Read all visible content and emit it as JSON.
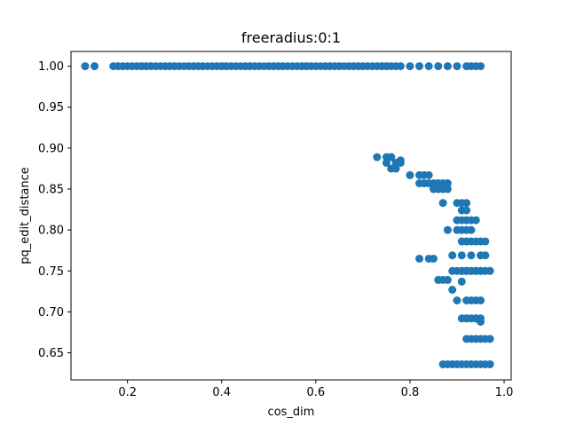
{
  "chart_data": {
    "type": "scatter",
    "title": "freeradius:0:1",
    "xlabel": "cos_dim",
    "ylabel": "pq_edit_distance",
    "xlim": [
      0.08,
      1.015
    ],
    "ylim": [
      0.617,
      1.018
    ],
    "xticks": [
      0.2,
      0.4,
      0.6,
      0.8,
      1.0
    ],
    "xtick_labels": [
      "0.2",
      "0.4",
      "0.6",
      "0.8",
      "1.0"
    ],
    "yticks": [
      0.65,
      0.7,
      0.75,
      0.8,
      0.85,
      0.9,
      0.95,
      1.0
    ],
    "ytick_labels": [
      "0.65",
      "0.70",
      "0.75",
      "0.80",
      "0.85",
      "0.90",
      "0.95",
      "1.00"
    ],
    "grid": false,
    "marker_color": "#1f77b4",
    "series": [
      {
        "x": [
          0.11,
          0.13,
          0.17,
          0.18,
          0.19,
          0.2,
          0.21,
          0.22,
          0.23,
          0.24,
          0.25,
          0.26,
          0.27,
          0.28,
          0.29,
          0.3,
          0.31,
          0.32,
          0.33,
          0.34,
          0.35,
          0.36,
          0.37,
          0.38,
          0.39,
          0.4,
          0.41,
          0.42,
          0.43,
          0.44,
          0.45,
          0.46,
          0.47,
          0.48,
          0.49,
          0.5,
          0.51,
          0.52,
          0.53,
          0.54,
          0.55,
          0.56,
          0.57,
          0.58,
          0.59,
          0.6,
          0.61,
          0.62,
          0.63,
          0.64,
          0.65,
          0.66,
          0.67,
          0.68,
          0.69,
          0.7,
          0.71,
          0.72,
          0.73,
          0.74,
          0.75,
          0.76,
          0.77,
          0.78,
          0.8,
          0.82,
          0.84,
          0.86,
          0.88,
          0.9,
          0.92,
          0.93,
          0.94,
          0.95,
          0.73,
          0.75,
          0.76,
          0.77,
          0.78,
          0.75,
          0.76,
          0.77,
          0.78,
          0.76,
          0.8,
          0.82,
          0.83,
          0.84,
          0.82,
          0.83,
          0.84,
          0.85,
          0.86,
          0.87,
          0.88,
          0.85,
          0.86,
          0.87,
          0.88,
          0.87,
          0.9,
          0.91,
          0.92,
          0.91,
          0.92,
          0.9,
          0.91,
          0.92,
          0.93,
          0.88,
          0.9,
          0.91,
          0.92,
          0.93,
          0.94,
          0.91,
          0.92,
          0.93,
          0.94,
          0.95,
          0.96,
          0.89,
          0.91,
          0.93,
          0.95,
          0.91,
          0.92,
          0.93,
          0.94,
          0.95,
          0.96,
          0.82,
          0.84,
          0.85,
          0.89,
          0.9,
          0.91,
          0.92,
          0.93,
          0.94,
          0.95,
          0.96,
          0.97,
          0.86,
          0.87,
          0.88,
          0.89,
          0.91,
          0.9,
          0.92,
          0.93,
          0.94,
          0.95,
          0.92,
          0.93,
          0.94,
          0.95,
          0.91,
          0.92,
          0.93,
          0.94,
          0.95,
          0.92,
          0.93,
          0.94,
          0.95,
          0.96,
          0.97,
          0.87,
          0.88,
          0.89,
          0.9,
          0.91,
          0.92,
          0.93,
          0.94,
          0.95,
          0.96,
          0.97
        ],
        "y": [
          1.0,
          1.0,
          1.0,
          1.0,
          1.0,
          1.0,
          1.0,
          1.0,
          1.0,
          1.0,
          1.0,
          1.0,
          1.0,
          1.0,
          1.0,
          1.0,
          1.0,
          1.0,
          1.0,
          1.0,
          1.0,
          1.0,
          1.0,
          1.0,
          1.0,
          1.0,
          1.0,
          1.0,
          1.0,
          1.0,
          1.0,
          1.0,
          1.0,
          1.0,
          1.0,
          1.0,
          1.0,
          1.0,
          1.0,
          1.0,
          1.0,
          1.0,
          1.0,
          1.0,
          1.0,
          1.0,
          1.0,
          1.0,
          1.0,
          1.0,
          1.0,
          1.0,
          1.0,
          1.0,
          1.0,
          1.0,
          1.0,
          1.0,
          1.0,
          1.0,
          1.0,
          1.0,
          1.0,
          1.0,
          1.0,
          1.0,
          1.0,
          1.0,
          1.0,
          1.0,
          1.0,
          1.0,
          1.0,
          1.0,
          0.889,
          0.889,
          0.889,
          0.882,
          0.885,
          0.882,
          0.875,
          0.875,
          0.882,
          0.889,
          0.867,
          0.867,
          0.867,
          0.867,
          0.857,
          0.857,
          0.857,
          0.857,
          0.857,
          0.857,
          0.857,
          0.85,
          0.85,
          0.85,
          0.85,
          0.833,
          0.833,
          0.833,
          0.833,
          0.824,
          0.824,
          0.812,
          0.812,
          0.812,
          0.812,
          0.8,
          0.8,
          0.8,
          0.8,
          0.8,
          0.812,
          0.786,
          0.786,
          0.786,
          0.786,
          0.786,
          0.786,
          0.769,
          0.769,
          0.769,
          0.769,
          0.75,
          0.75,
          0.75,
          0.75,
          0.75,
          0.769,
          0.765,
          0.765,
          0.765,
          0.75,
          0.75,
          0.75,
          0.75,
          0.75,
          0.75,
          0.75,
          0.75,
          0.75,
          0.739,
          0.739,
          0.739,
          0.727,
          0.737,
          0.714,
          0.714,
          0.714,
          0.714,
          0.714,
          0.692,
          0.692,
          0.692,
          0.688,
          0.692,
          0.692,
          0.692,
          0.692,
          0.692,
          0.667,
          0.667,
          0.667,
          0.667,
          0.667,
          0.667,
          0.636,
          0.636,
          0.636,
          0.636,
          0.636,
          0.636,
          0.636,
          0.636,
          0.636,
          0.636,
          0.636
        ]
      }
    ]
  }
}
